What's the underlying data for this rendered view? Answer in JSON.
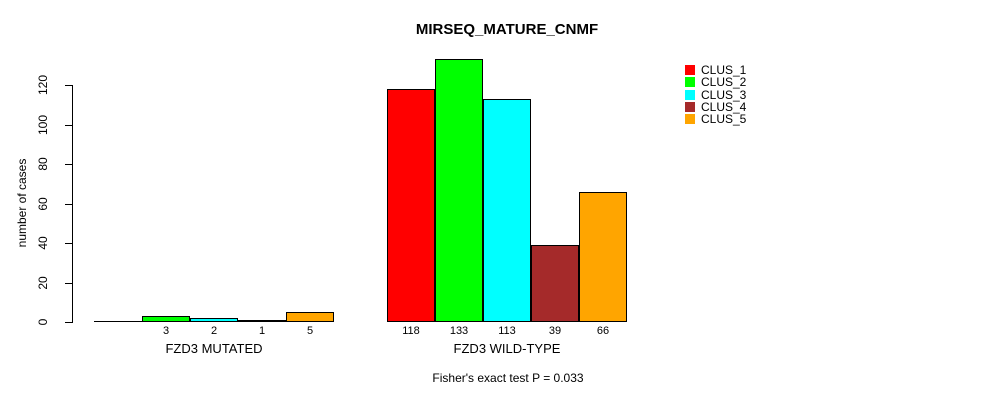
{
  "chart_data": {
    "type": "bar",
    "title": "MIRSEQ_MATURE_CNMF",
    "ylabel": "number of cases",
    "xlabel": "",
    "categories": [
      "FZD3 MUTATED",
      "FZD3 WILD-TYPE"
    ],
    "series": [
      {
        "name": "CLUS_1",
        "color": "#ff0000",
        "values": [
          0,
          118
        ],
        "value_labels": [
          "",
          "118"
        ]
      },
      {
        "name": "CLUS_2",
        "color": "#00ff00",
        "values": [
          3,
          133
        ],
        "value_labels": [
          "3",
          "133"
        ]
      },
      {
        "name": "CLUS_3",
        "color": "#00ffff",
        "values": [
          2,
          113
        ],
        "value_labels": [
          "2",
          "113"
        ]
      },
      {
        "name": "CLUS_4",
        "color": "#a52a2a",
        "values": [
          1,
          39
        ],
        "value_labels": [
          "1",
          "39"
        ]
      },
      {
        "name": "CLUS_5",
        "color": "#ffa500",
        "values": [
          5,
          66
        ],
        "value_labels": [
          "5",
          "66"
        ]
      }
    ],
    "yticks": [
      0,
      20,
      40,
      60,
      80,
      100,
      120
    ],
    "ylim": [
      0,
      133
    ],
    "grid": false,
    "legend": {
      "position": "right",
      "entries": [
        "CLUS_1",
        "CLUS_2",
        "CLUS_3",
        "CLUS_4",
        "CLUS_5"
      ]
    },
    "footnote": "Fisher's exact test P = 0.033"
  }
}
